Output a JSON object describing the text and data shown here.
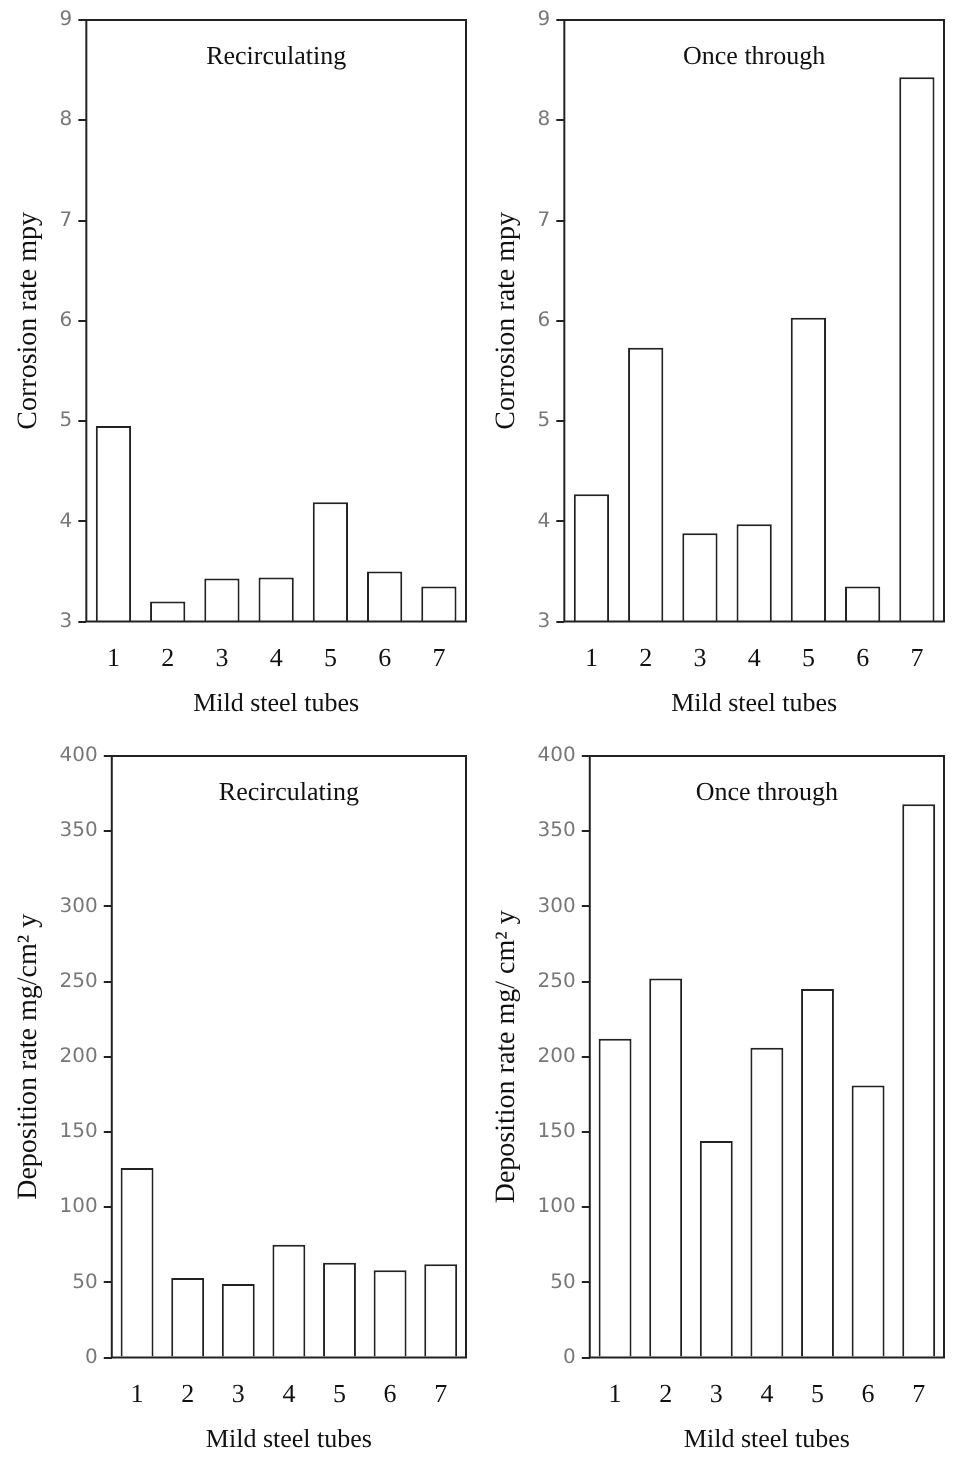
{
  "chart_data": [
    {
      "type": "bar",
      "annotations": [
        "Recirculating"
      ],
      "xlabel": "Mild steel tubes",
      "ylabel": "Corrosion rate mpy",
      "categories": [
        "1",
        "2",
        "3",
        "4",
        "5",
        "6",
        "7"
      ],
      "values": [
        4.95,
        3.2,
        3.43,
        3.44,
        4.19,
        3.5,
        3.35
      ],
      "color": "#ffffff",
      "ylim": [
        3,
        9
      ],
      "yticks": [
        3,
        4,
        5,
        6,
        7,
        8,
        9
      ],
      "grid": false
    },
    {
      "type": "bar",
      "annotations": [
        "Once through"
      ],
      "xlabel": "Mild steel tubes",
      "ylabel": "Corrosion rate mpy",
      "categories": [
        "1",
        "2",
        "3",
        "4",
        "5",
        "6",
        "7"
      ],
      "values": [
        4.27,
        5.73,
        3.88,
        3.97,
        6.03,
        3.35,
        8.43
      ],
      "color": "#ffffff",
      "ylim": [
        3,
        9
      ],
      "yticks": [
        3,
        4,
        5,
        6,
        7,
        8,
        9
      ],
      "grid": false
    },
    {
      "type": "bar",
      "annotations": [
        "Recirculating"
      ],
      "xlabel": "Mild steel tubes",
      "ylabel": "Deposition rate mg/cm² y",
      "categories": [
        "1",
        "2",
        "3",
        "4",
        "5",
        "6",
        "7"
      ],
      "values": [
        126,
        53,
        49,
        75,
        63,
        58,
        62
      ],
      "color": "#ffffff",
      "ylim": [
        0,
        400
      ],
      "yticks": [
        0,
        50,
        100,
        150,
        200,
        250,
        300,
        350,
        400
      ],
      "grid": false
    },
    {
      "type": "bar",
      "annotations": [
        "Once through"
      ],
      "xlabel": "Mild steel tubes",
      "ylabel": "Deposition rate mg/ cm² y",
      "categories": [
        "1",
        "2",
        "3",
        "4",
        "5",
        "6",
        "7"
      ],
      "values": [
        212,
        252,
        144,
        206,
        245,
        181,
        368
      ],
      "color": "#ffffff",
      "ylim": [
        0,
        400
      ],
      "yticks": [
        0,
        50,
        100,
        150,
        200,
        250,
        300,
        350,
        400
      ],
      "grid": false
    }
  ]
}
